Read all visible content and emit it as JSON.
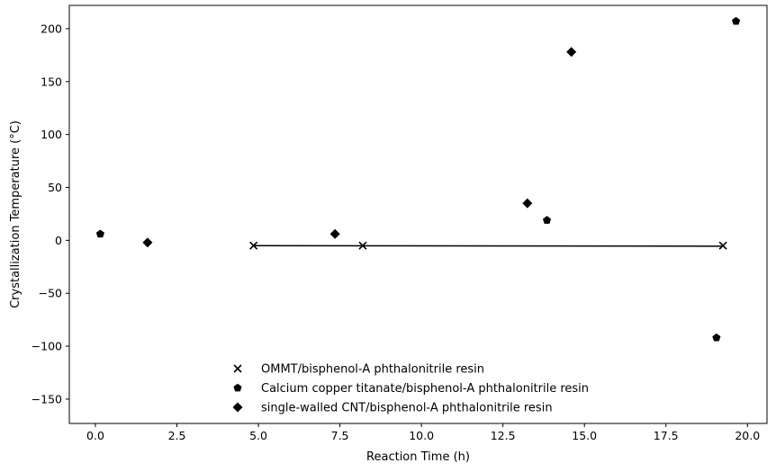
{
  "chart_data": {
    "type": "scatter",
    "title": "",
    "xlabel": "Reaction Time (h)",
    "ylabel": "Crystallization Temperature (°C)",
    "xlim": [
      -0.8,
      20.6
    ],
    "ylim": [
      -173,
      222
    ],
    "xticks": [
      0.0,
      2.5,
      5.0,
      7.5,
      10.0,
      12.5,
      15.0,
      17.5,
      20.0
    ],
    "xtick_labels": [
      "0.0",
      "2.5",
      "5.0",
      "7.5",
      "10.0",
      "12.5",
      "15.0",
      "17.5",
      "20.0"
    ],
    "yticks": [
      -150,
      -100,
      -50,
      0,
      50,
      100,
      150,
      200
    ],
    "ytick_labels": [
      "−150",
      "−100",
      "−50",
      "0",
      "50",
      "100",
      "150",
      "200"
    ],
    "grid": false,
    "legend_position": "bottom-center",
    "series": [
      {
        "name": "OMMT/bisphenol-A phthalonitrile resin",
        "marker": "x",
        "color": "#000000",
        "x": [
          4.85,
          8.2,
          19.25
        ],
        "y": [
          -5,
          -5,
          -5
        ]
      },
      {
        "name": "Calcium copper titanate/bisphenol-A phthalonitrile resin",
        "marker": "pentagon",
        "color": "#000000",
        "x": [
          0.15,
          13.85,
          19.05,
          19.65
        ],
        "y": [
          6,
          19,
          -92,
          207
        ]
      },
      {
        "name": "single-walled CNT/bisphenol-A phthalonitrile resin",
        "marker": "diamond",
        "color": "#000000",
        "x": [
          1.6,
          7.35,
          13.25,
          14.6
        ],
        "y": [
          -2,
          6,
          35,
          178
        ]
      }
    ],
    "lines": [
      {
        "x": [
          4.85,
          19.25
        ],
        "y": [
          -5,
          -5.5
        ],
        "color": "#000000"
      }
    ]
  }
}
